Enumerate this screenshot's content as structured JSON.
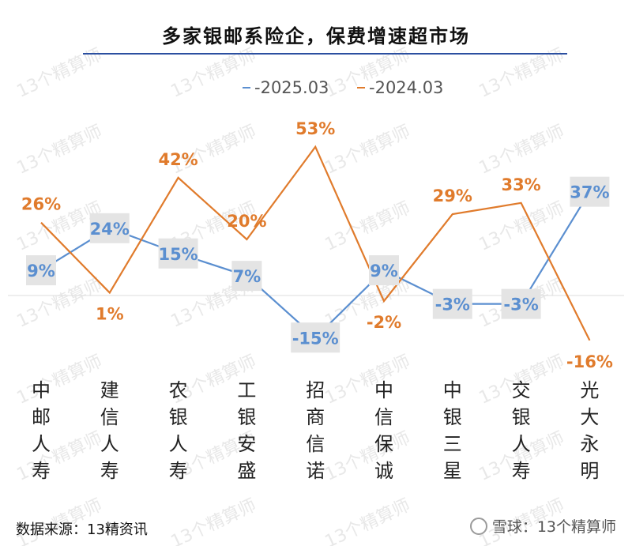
{
  "chart_data": {
    "type": "line",
    "title": "多家银邮系险企，保费增速超市场",
    "categories": [
      "中邮人寿",
      "建信人寿",
      "农银人寿",
      "工银安盛",
      "招商信诺",
      "中信保诚",
      "中银三星",
      "交银人寿",
      "光大永明"
    ],
    "series": [
      {
        "name": "2025.03",
        "color": "#5b8fd0",
        "values": [
          9,
          24,
          15,
          7,
          -15,
          9,
          -3,
          -3,
          37
        ],
        "labels": [
          "9%",
          "24%",
          "15%",
          "7%",
          "-15%",
          "9%",
          "-3%",
          "-3%",
          "37%"
        ]
      },
      {
        "name": "2024.03",
        "color": "#e07b2c",
        "values": [
          26,
          1,
          42,
          20,
          53,
          -2,
          29,
          33,
          -16
        ],
        "labels": [
          "26%",
          "1%",
          "42%",
          "20%",
          "53%",
          "-2%",
          "29%",
          "33%",
          "-16%"
        ]
      }
    ],
    "legend_position": "top",
    "grid": false
  },
  "legend_labels": [
    "-2025.03",
    "-2024.03"
  ],
  "watermark": "13个精算师",
  "footer": {
    "source": "数据来源：13精资讯",
    "platform": "雪球：13个精算师"
  }
}
